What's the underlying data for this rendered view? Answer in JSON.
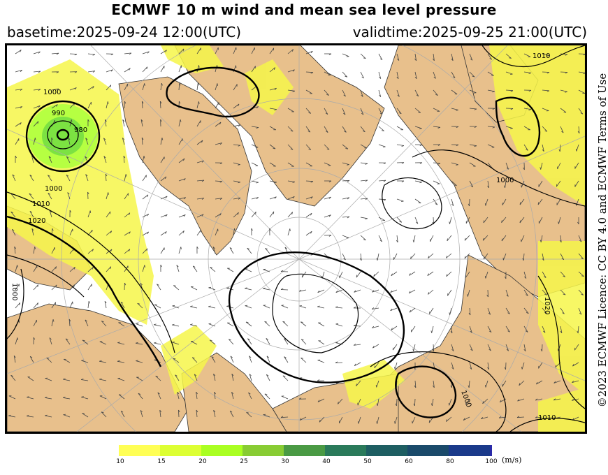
{
  "header": {
    "title": "ECMWF 10 m wind and mean sea level pressure",
    "basetime": "basetime:2025-09-24 12:00(UTC)",
    "validtime": "validtime:2025-09-25 21:00(UTC)"
  },
  "side_text": "©2023 ECMWF Licence: CC BY 4.0 and ECMWF Terms of Use",
  "isobar_labels": [
    "1000",
    "990",
    "980",
    "1000",
    "1010",
    "1020",
    "1000",
    "1010",
    "1020",
    "1000",
    "1010",
    "1000"
  ],
  "legend": {
    "ticks": [
      "10",
      "15",
      "20",
      "25",
      "30",
      "40",
      "50",
      "60",
      "80",
      "100"
    ],
    "colors": [
      "#ffff55",
      "#ddff33",
      "#aaff22",
      "#88cc33",
      "#4a9a44",
      "#2a7a5a",
      "#1e5e62",
      "#1a4a6a",
      "#1a3a8a",
      "#2a2aa8"
    ],
    "unit": "(m/s)"
  },
  "colors": {
    "land": "#e8c08c",
    "ocean": "#ffffff",
    "wind_yellow": "#f6f64a",
    "wind_green": "#66dd22",
    "isobar": "#000000"
  }
}
